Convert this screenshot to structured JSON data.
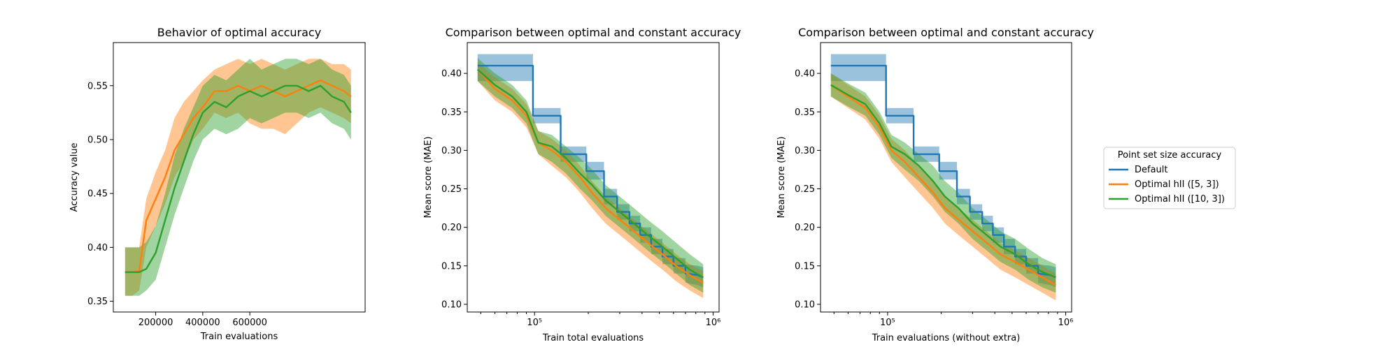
{
  "chart_data": [
    {
      "type": "line",
      "title": "Behavior of optimal accuracy",
      "xlabel": "Train evaluations",
      "ylabel": "Accuracy value",
      "xscale": "linear",
      "xlim": [
        20000,
        1090000
      ],
      "ylim": [
        0.34,
        0.59
      ],
      "xticks": [
        200000,
        400000,
        600000
      ],
      "xtick_labels": [
        "200000",
        "400000",
        "600000"
      ],
      "yticks": [
        0.35,
        0.4,
        0.45,
        0.5,
        0.55
      ],
      "ytick_labels": [
        "0.35",
        "0.40",
        "0.45",
        "0.50",
        "0.55"
      ],
      "grid": false,
      "series": [
        {
          "name": "Optimal hII ([5, 3])",
          "color": "#ff7f0e",
          "x": [
            70000,
            100000,
            130000,
            160000,
            200000,
            240000,
            280000,
            320000,
            360000,
            400000,
            450000,
            500000,
            550000,
            600000,
            650000,
            700000,
            750000,
            800000,
            850000,
            900000,
            950000,
            1000000,
            1030000
          ],
          "y": [
            0.377,
            0.377,
            0.378,
            0.425,
            0.445,
            0.465,
            0.49,
            0.505,
            0.52,
            0.53,
            0.545,
            0.545,
            0.55,
            0.545,
            0.55,
            0.545,
            0.54,
            0.545,
            0.55,
            0.555,
            0.55,
            0.545,
            0.54
          ],
          "lower": [
            0.355,
            0.355,
            0.36,
            0.4,
            0.42,
            0.44,
            0.465,
            0.48,
            0.5,
            0.51,
            0.525,
            0.52,
            0.525,
            0.515,
            0.51,
            0.51,
            0.505,
            0.515,
            0.525,
            0.53,
            0.525,
            0.52,
            0.515
          ],
          "upper": [
            0.4,
            0.4,
            0.4,
            0.445,
            0.47,
            0.49,
            0.52,
            0.535,
            0.545,
            0.555,
            0.565,
            0.57,
            0.575,
            0.57,
            0.575,
            0.57,
            0.565,
            0.57,
            0.575,
            0.575,
            0.57,
            0.57,
            0.565
          ]
        },
        {
          "name": "Optimal hII ([10, 3])",
          "color": "#2ca02c",
          "x": [
            70000,
            100000,
            130000,
            160000,
            200000,
            240000,
            280000,
            320000,
            360000,
            400000,
            450000,
            500000,
            550000,
            600000,
            650000,
            700000,
            750000,
            800000,
            850000,
            900000,
            950000,
            1000000,
            1030000
          ],
          "y": [
            0.377,
            0.377,
            0.377,
            0.38,
            0.395,
            0.425,
            0.455,
            0.48,
            0.505,
            0.525,
            0.535,
            0.53,
            0.54,
            0.545,
            0.54,
            0.545,
            0.55,
            0.55,
            0.545,
            0.55,
            0.54,
            0.535,
            0.525
          ],
          "lower": [
            0.355,
            0.355,
            0.355,
            0.36,
            0.37,
            0.4,
            0.43,
            0.455,
            0.48,
            0.5,
            0.51,
            0.505,
            0.51,
            0.52,
            0.515,
            0.52,
            0.525,
            0.525,
            0.52,
            0.525,
            0.515,
            0.51,
            0.5
          ],
          "upper": [
            0.4,
            0.4,
            0.4,
            0.405,
            0.42,
            0.45,
            0.485,
            0.51,
            0.53,
            0.55,
            0.56,
            0.555,
            0.565,
            0.575,
            0.565,
            0.57,
            0.575,
            0.575,
            0.57,
            0.575,
            0.565,
            0.56,
            0.55
          ]
        }
      ]
    },
    {
      "type": "line",
      "title": "Comparison between optimal and constant accuracy",
      "xlabel": "Train total evaluations",
      "ylabel": "Mean score (MAE)",
      "xscale": "log",
      "xlim": [
        42000,
        1080000
      ],
      "ylim": [
        0.09,
        0.44
      ],
      "xticks": [
        100000,
        1000000
      ],
      "xtick_labels": [
        "10⁵",
        "10⁶"
      ],
      "yticks": [
        0.1,
        0.15,
        0.2,
        0.25,
        0.3,
        0.35,
        0.4
      ],
      "ytick_labels": [
        "0.10",
        "0.15",
        "0.20",
        "0.25",
        "0.30",
        "0.35",
        "0.40"
      ],
      "grid": false,
      "series": [
        {
          "name": "Default",
          "color": "#1f77b4",
          "x": [
            48000,
            98000,
            98000,
            140000,
            140000,
            195000,
            195000,
            245000,
            245000,
            290000,
            290000,
            340000,
            340000,
            390000,
            390000,
            450000,
            450000,
            520000,
            520000,
            600000,
            600000,
            700000,
            700000,
            820000,
            880000
          ],
          "y": [
            0.41,
            0.41,
            0.345,
            0.345,
            0.295,
            0.295,
            0.273,
            0.273,
            0.24,
            0.24,
            0.22,
            0.22,
            0.205,
            0.205,
            0.19,
            0.19,
            0.175,
            0.175,
            0.162,
            0.162,
            0.15,
            0.15,
            0.14,
            0.138,
            0.135
          ],
          "lower": [
            0.39,
            0.39,
            0.335,
            0.335,
            0.285,
            0.285,
            0.262,
            0.262,
            0.23,
            0.23,
            0.21,
            0.21,
            0.195,
            0.195,
            0.18,
            0.18,
            0.165,
            0.165,
            0.152,
            0.152,
            0.14,
            0.14,
            0.128,
            0.125,
            0.122
          ],
          "upper": [
            0.425,
            0.425,
            0.355,
            0.355,
            0.305,
            0.305,
            0.285,
            0.285,
            0.25,
            0.25,
            0.23,
            0.23,
            0.215,
            0.215,
            0.2,
            0.2,
            0.185,
            0.185,
            0.172,
            0.172,
            0.16,
            0.16,
            0.152,
            0.15,
            0.148
          ]
        },
        {
          "name": "Optimal hII ([5, 3])",
          "color": "#ff7f0e",
          "x": [
            48000,
            60000,
            75000,
            90000,
            105000,
            125000,
            150000,
            180000,
            210000,
            250000,
            300000,
            360000,
            430000,
            520000,
            620000,
            740000,
            880000
          ],
          "y": [
            0.405,
            0.38,
            0.365,
            0.345,
            0.31,
            0.3,
            0.285,
            0.265,
            0.245,
            0.225,
            0.21,
            0.195,
            0.18,
            0.165,
            0.15,
            0.138,
            0.128
          ],
          "lower": [
            0.39,
            0.365,
            0.35,
            0.33,
            0.295,
            0.28,
            0.265,
            0.245,
            0.225,
            0.205,
            0.19,
            0.175,
            0.16,
            0.145,
            0.13,
            0.118,
            0.108
          ],
          "upper": [
            0.415,
            0.395,
            0.38,
            0.36,
            0.325,
            0.315,
            0.3,
            0.28,
            0.26,
            0.24,
            0.225,
            0.21,
            0.195,
            0.18,
            0.165,
            0.152,
            0.143
          ]
        },
        {
          "name": "Optimal hII ([10, 3])",
          "color": "#2ca02c",
          "x": [
            48000,
            60000,
            75000,
            90000,
            105000,
            125000,
            150000,
            180000,
            210000,
            250000,
            300000,
            360000,
            430000,
            520000,
            620000,
            740000,
            880000
          ],
          "y": [
            0.405,
            0.385,
            0.37,
            0.35,
            0.31,
            0.305,
            0.29,
            0.27,
            0.255,
            0.235,
            0.22,
            0.205,
            0.19,
            0.175,
            0.16,
            0.145,
            0.135
          ],
          "lower": [
            0.39,
            0.37,
            0.355,
            0.335,
            0.295,
            0.285,
            0.27,
            0.25,
            0.235,
            0.215,
            0.2,
            0.185,
            0.17,
            0.155,
            0.14,
            0.125,
            0.115
          ],
          "upper": [
            0.42,
            0.4,
            0.385,
            0.365,
            0.325,
            0.32,
            0.305,
            0.29,
            0.275,
            0.255,
            0.24,
            0.225,
            0.21,
            0.195,
            0.18,
            0.165,
            0.152
          ]
        }
      ]
    },
    {
      "type": "line",
      "title": "Comparison between optimal and constant accuracy",
      "xlabel": "Train evaluations (without extra)",
      "ylabel": "Mean score (MAE)",
      "xscale": "log",
      "xlim": [
        42000,
        1080000
      ],
      "ylim": [
        0.09,
        0.44
      ],
      "xticks": [
        100000,
        1000000
      ],
      "xtick_labels": [
        "10⁵",
        "10⁶"
      ],
      "yticks": [
        0.1,
        0.15,
        0.2,
        0.25,
        0.3,
        0.35,
        0.4
      ],
      "ytick_labels": [
        "0.10",
        "0.15",
        "0.20",
        "0.25",
        "0.30",
        "0.35",
        "0.40"
      ],
      "grid": false,
      "series": [
        {
          "name": "Default",
          "color": "#1f77b4",
          "x": [
            48000,
            98000,
            98000,
            140000,
            140000,
            195000,
            195000,
            245000,
            245000,
            290000,
            290000,
            340000,
            340000,
            390000,
            390000,
            450000,
            450000,
            520000,
            520000,
            600000,
            600000,
            700000,
            700000,
            820000,
            880000
          ],
          "y": [
            0.41,
            0.41,
            0.345,
            0.345,
            0.295,
            0.295,
            0.273,
            0.273,
            0.24,
            0.24,
            0.22,
            0.22,
            0.205,
            0.205,
            0.19,
            0.19,
            0.175,
            0.175,
            0.162,
            0.162,
            0.15,
            0.15,
            0.14,
            0.138,
            0.135
          ],
          "lower": [
            0.39,
            0.39,
            0.335,
            0.335,
            0.285,
            0.285,
            0.262,
            0.262,
            0.23,
            0.23,
            0.21,
            0.21,
            0.195,
            0.195,
            0.18,
            0.18,
            0.165,
            0.165,
            0.152,
            0.152,
            0.14,
            0.14,
            0.128,
            0.125,
            0.122
          ],
          "upper": [
            0.425,
            0.425,
            0.355,
            0.355,
            0.305,
            0.305,
            0.285,
            0.285,
            0.25,
            0.25,
            0.23,
            0.23,
            0.215,
            0.215,
            0.2,
            0.2,
            0.185,
            0.185,
            0.172,
            0.172,
            0.16,
            0.16,
            0.152,
            0.15,
            0.148
          ]
        },
        {
          "name": "Optimal hII ([5, 3])",
          "color": "#ff7f0e",
          "x": [
            48000,
            60000,
            75000,
            90000,
            105000,
            125000,
            150000,
            180000,
            210000,
            250000,
            300000,
            360000,
            430000,
            520000,
            620000,
            740000,
            880000
          ],
          "y": [
            0.385,
            0.37,
            0.355,
            0.33,
            0.3,
            0.285,
            0.265,
            0.245,
            0.225,
            0.21,
            0.195,
            0.18,
            0.165,
            0.155,
            0.145,
            0.135,
            0.125
          ],
          "lower": [
            0.37,
            0.355,
            0.34,
            0.315,
            0.285,
            0.265,
            0.245,
            0.225,
            0.205,
            0.19,
            0.175,
            0.16,
            0.145,
            0.135,
            0.125,
            0.115,
            0.105
          ],
          "upper": [
            0.4,
            0.385,
            0.37,
            0.345,
            0.315,
            0.3,
            0.28,
            0.26,
            0.24,
            0.225,
            0.21,
            0.195,
            0.18,
            0.17,
            0.16,
            0.15,
            0.14
          ]
        },
        {
          "name": "Optimal hII ([10, 3])",
          "color": "#2ca02c",
          "x": [
            48000,
            60000,
            75000,
            90000,
            105000,
            125000,
            150000,
            180000,
            210000,
            250000,
            300000,
            360000,
            430000,
            520000,
            620000,
            740000,
            880000
          ],
          "y": [
            0.385,
            0.372,
            0.36,
            0.335,
            0.305,
            0.295,
            0.28,
            0.26,
            0.24,
            0.225,
            0.205,
            0.19,
            0.175,
            0.165,
            0.152,
            0.142,
            0.135
          ],
          "lower": [
            0.37,
            0.357,
            0.345,
            0.32,
            0.29,
            0.275,
            0.26,
            0.24,
            0.22,
            0.205,
            0.185,
            0.17,
            0.155,
            0.145,
            0.132,
            0.122,
            0.115
          ],
          "upper": [
            0.4,
            0.387,
            0.375,
            0.35,
            0.32,
            0.31,
            0.295,
            0.28,
            0.26,
            0.245,
            0.225,
            0.21,
            0.195,
            0.185,
            0.172,
            0.16,
            0.152
          ]
        }
      ]
    }
  ],
  "legend": {
    "title": "Point set size accuracy",
    "placement": "right",
    "entries": [
      {
        "label": "Default",
        "color": "#1f77b4"
      },
      {
        "label": "Optimal hII ([5, 3])",
        "color": "#ff7f0e"
      },
      {
        "label": "Optimal hII ([10, 3])",
        "color": "#2ca02c"
      }
    ]
  }
}
